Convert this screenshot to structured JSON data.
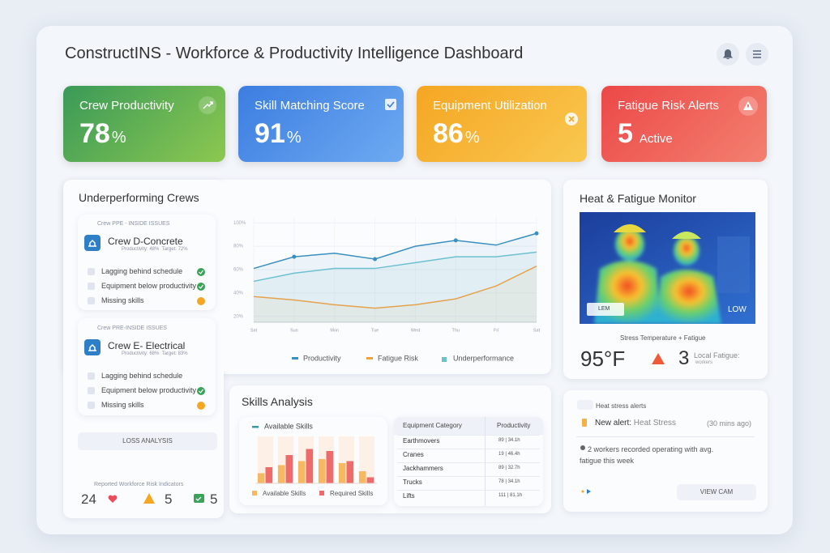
{
  "header": {
    "title": "ConstructINS - Workforce & Productivity Intelligence Dashboard"
  },
  "kpis": [
    {
      "label": "Crew Productivity",
      "value": 78,
      "unit": "%"
    },
    {
      "label": "Skill Matching Score",
      "value": 91,
      "unit": "%"
    },
    {
      "label": "Equipment Utilization",
      "value": 86,
      "unit": "%"
    },
    {
      "label": "Fatigue Risk Alerts",
      "value": 5,
      "unit": "Active"
    }
  ],
  "crews_panel": {
    "title": "Underperforming Crews",
    "crews": [
      {
        "tag": "Crew PPE - INSIDE ISSUES",
        "name": "Crew D-Concrete",
        "meta": "Productivity: 48%  Target: 72%",
        "items": [
          {
            "text": "Lagging behind schedule",
            "status": "ok"
          },
          {
            "text": "Equipment below productivity",
            "status": "ok"
          },
          {
            "text": "Missing skills",
            "status": "warn"
          }
        ]
      },
      {
        "tag": "Crew PRE-INSIDE ISSUES",
        "name": "Crew E- Electrical",
        "meta": "Productivity: 68%  Target: 83%",
        "items": [
          {
            "text": "Lagging behind schedule",
            "status": "none"
          },
          {
            "text": "Equipment below productivity",
            "status": "ok"
          },
          {
            "text": "Missing skills",
            "status": "warn"
          }
        ]
      }
    ],
    "button": "LOSS ANALYSIS",
    "indicators_title": "Reported Workforce Risk Indicators",
    "indicators": [
      24,
      5,
      5
    ]
  },
  "skills_panel": {
    "title": "Skills Analysis",
    "table": {
      "header": [
        "Equipment Category",
        "Productivity"
      ],
      "rows": [
        [
          "Earthmovers",
          "89 | 34.1h"
        ],
        [
          "Cranes",
          "19 | 46.4h"
        ],
        [
          "Jackhammers",
          "89 | 32.7h"
        ],
        [
          "Trucks",
          "78 | 34.1h"
        ],
        [
          "Lifts",
          "111 | 81.1h"
        ]
      ]
    }
  },
  "heat_panel": {
    "title": "Heat & Fatigue Monitor",
    "image_tag": "LEM",
    "image_level": "LOW",
    "caption": "Stress Temperature + Fatigue",
    "temperature": "95°F",
    "count": 3,
    "count_label": "Local Fatigue:",
    "count_sub": "workers"
  },
  "alerts_panel": {
    "title": "Heat stress alerts",
    "alert_prefix": "New alert:",
    "alert_type": "Heat Stress",
    "alert_time": "(30 mins ago)",
    "note": "2 workers recorded operating with avg. fatigue this week",
    "button": "VIEW CAM"
  },
  "chart_data": [
    {
      "type": "line",
      "categories": [
        "Sat",
        "Sun",
        "Mon",
        "Tue",
        "Wed",
        "Thu",
        "Fri",
        "Sat"
      ],
      "series": [
        {
          "name": "Productivity",
          "color": "#3a8fbf",
          "values": [
            61,
            71,
            74,
            69,
            80,
            85,
            81,
            91
          ]
        },
        {
          "name": "Fatigue Risk",
          "color": "#f0a040",
          "values": [
            37,
            34,
            30,
            27,
            30,
            35,
            46,
            63
          ]
        },
        {
          "name": "Underperformance",
          "color": "#6cc0cf",
          "values": [
            50,
            57,
            61,
            61,
            66,
            71,
            71,
            75
          ]
        }
      ],
      "ylim": [
        15,
        105
      ],
      "yticks": [
        {
          "value": 100,
          "label": "100%"
        },
        {
          "value": 80,
          "label": "80%"
        },
        {
          "value": 60,
          "label": "60%"
        },
        {
          "value": 40,
          "label": "40%"
        },
        {
          "value": 20,
          "label": "20%"
        }
      ],
      "grid": true
    },
    {
      "type": "bar",
      "categories": [
        null,
        null,
        null,
        null,
        null,
        null
      ],
      "series": [
        {
          "name": "Available Skills",
          "color": "#f6b860",
          "values": [
            25,
            45,
            55,
            60,
            50,
            30
          ]
        },
        {
          "name": "Required Skills",
          "color": "#ee6b6b",
          "values": [
            40,
            70,
            85,
            80,
            55,
            15
          ]
        }
      ],
      "ylim": [
        0,
        100
      ]
    }
  ]
}
